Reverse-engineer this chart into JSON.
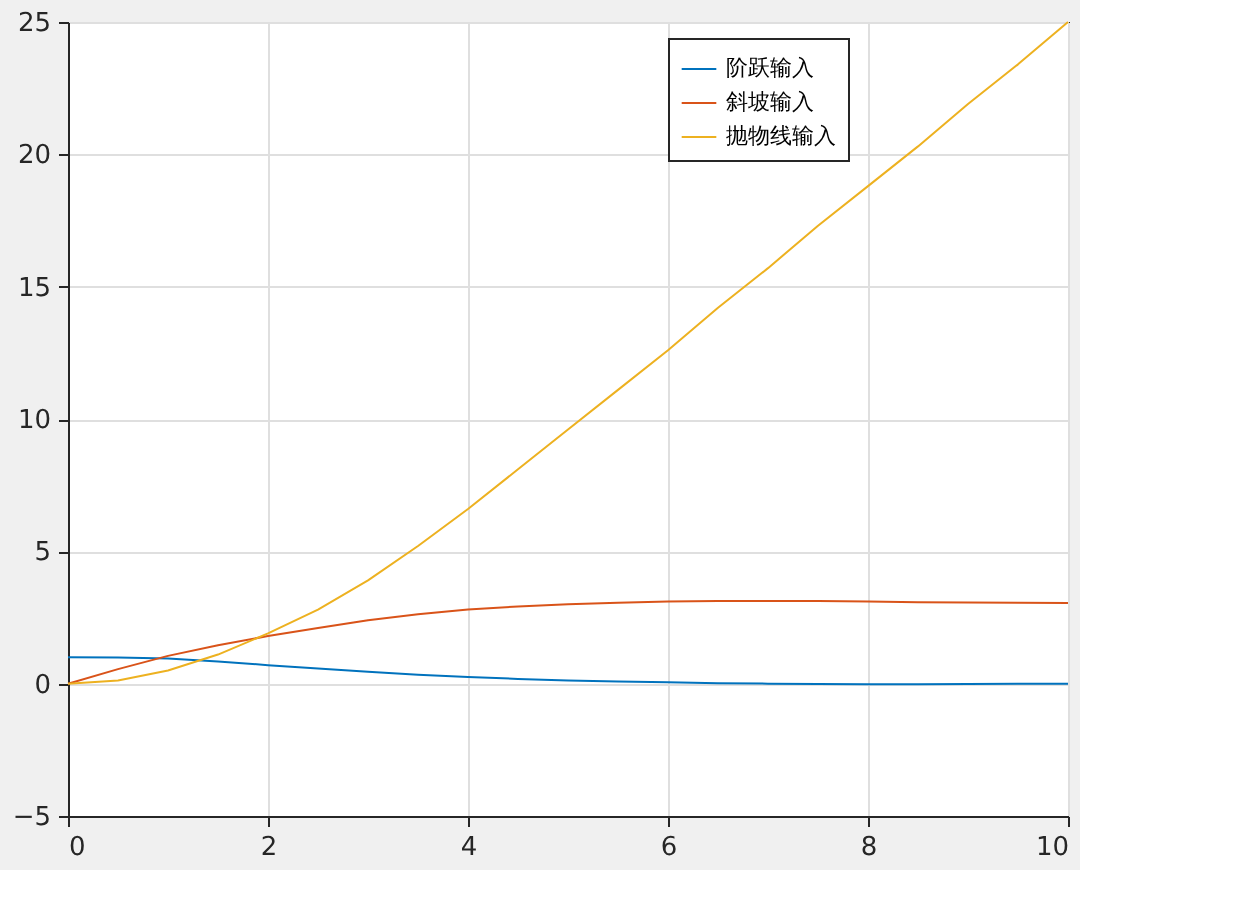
{
  "chart_data": {
    "type": "line",
    "x": [
      0,
      0.5,
      1,
      1.5,
      2,
      2.5,
      3,
      3.5,
      4,
      4.5,
      5,
      5.5,
      6,
      6.5,
      7,
      7.5,
      8,
      8.5,
      9,
      9.5,
      10
    ],
    "series": [
      {
        "name": "阶跃输入",
        "color": "#0072bd",
        "values": [
          1,
          0.99,
          0.95,
          0.84,
          0.7,
          0.57,
          0.45,
          0.34,
          0.25,
          0.18,
          0.12,
          0.08,
          0.05,
          0.02,
          0,
          -0.01,
          -0.02,
          -0.02,
          -0.01,
          0,
          0
        ]
      },
      {
        "name": "斜坡输入",
        "color": "#d95319",
        "values": [
          0,
          0.55,
          1.05,
          1.45,
          1.8,
          2.1,
          2.4,
          2.62,
          2.8,
          2.92,
          3.0,
          3.06,
          3.1,
          3.12,
          3.12,
          3.12,
          3.1,
          3.08,
          3.07,
          3.06,
          3.05
        ]
      },
      {
        "name": "抛物线输入",
        "color": "#edb120",
        "values": [
          0,
          0.12,
          0.5,
          1.1,
          1.9,
          2.8,
          3.9,
          5.2,
          6.6,
          8.1,
          9.6,
          11.1,
          12.6,
          14.2,
          15.7,
          17.3,
          18.8,
          20.3,
          21.9,
          23.4,
          25
        ]
      }
    ],
    "xlim": [
      0,
      10
    ],
    "ylim": [
      -5,
      25
    ],
    "xticks": [
      0,
      2,
      4,
      6,
      8,
      10
    ],
    "yticks": [
      -5,
      0,
      5,
      10,
      15,
      20,
      25
    ],
    "grid": true,
    "legend": "top right",
    "line_style": "solid",
    "marker": "none"
  }
}
